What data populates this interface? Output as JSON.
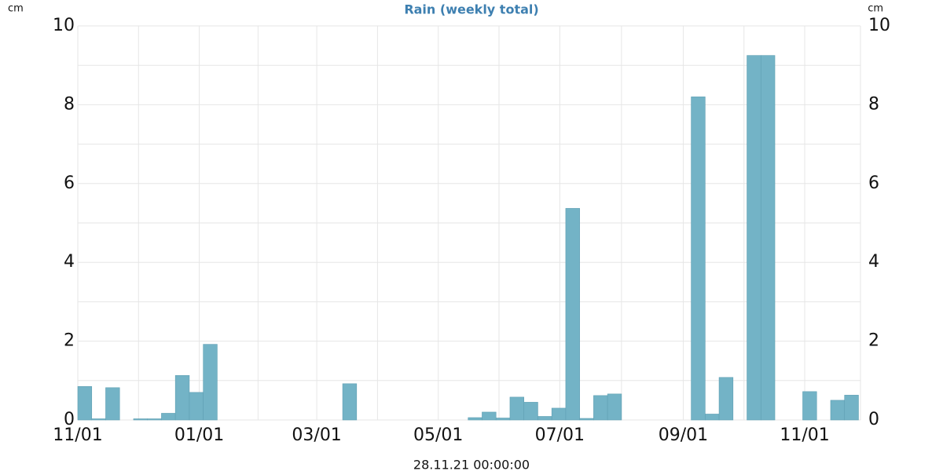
{
  "chart_data": {
    "type": "bar",
    "title": "Rain (weekly total)",
    "xlabel": "28.11.21 00:00:00",
    "ylabel": "cm",
    "y2label": "cm",
    "color": "#73b3c6",
    "grid": true,
    "x": [
      0,
      7,
      14,
      21,
      28,
      35,
      42,
      49,
      56,
      63,
      70,
      77,
      84,
      91,
      98,
      105,
      112,
      119,
      126,
      133,
      140,
      147,
      154,
      161,
      168,
      175,
      182,
      189,
      196,
      203,
      210,
      217,
      224,
      231,
      238,
      245,
      252,
      259,
      266,
      273,
      280,
      287,
      294,
      301,
      308,
      315,
      322,
      329,
      336,
      343,
      350,
      357,
      364,
      371,
      378,
      385
    ],
    "values": [
      0.85,
      0.03,
      0.82,
      0,
      0.03,
      0.03,
      0.17,
      1.13,
      0.7,
      1.92,
      0,
      0,
      0,
      0,
      0,
      0,
      0,
      0,
      0,
      0.92,
      0,
      0,
      0,
      0,
      0,
      0,
      0,
      0,
      0.06,
      0.2,
      0.05,
      0.58,
      0.45,
      0.09,
      0.3,
      5.37,
      0.04,
      0.62,
      0.66,
      0,
      0,
      0,
      0,
      0,
      8.2,
      0.15,
      1.08,
      0,
      9.25,
      9.25,
      0,
      0,
      0.72,
      0,
      0.5,
      0.63
    ],
    "xlim": [
      0,
      393
    ],
    "xticks": [
      {
        "value": 0,
        "label": "11/01"
      },
      {
        "value": 61,
        "label": "01/01"
      },
      {
        "value": 120,
        "label": "03/01"
      },
      {
        "value": 181,
        "label": "05/01"
      },
      {
        "value": 242,
        "label": "07/01"
      },
      {
        "value": 304,
        "label": "09/01"
      },
      {
        "value": 365,
        "label": "11/01"
      }
    ],
    "ylim": [
      0,
      10
    ],
    "yticks": [
      0,
      2,
      4,
      6,
      8,
      10
    ],
    "y2lim": [
      0,
      10
    ],
    "y2ticks": [
      0,
      2,
      4,
      6,
      8,
      10
    ]
  }
}
